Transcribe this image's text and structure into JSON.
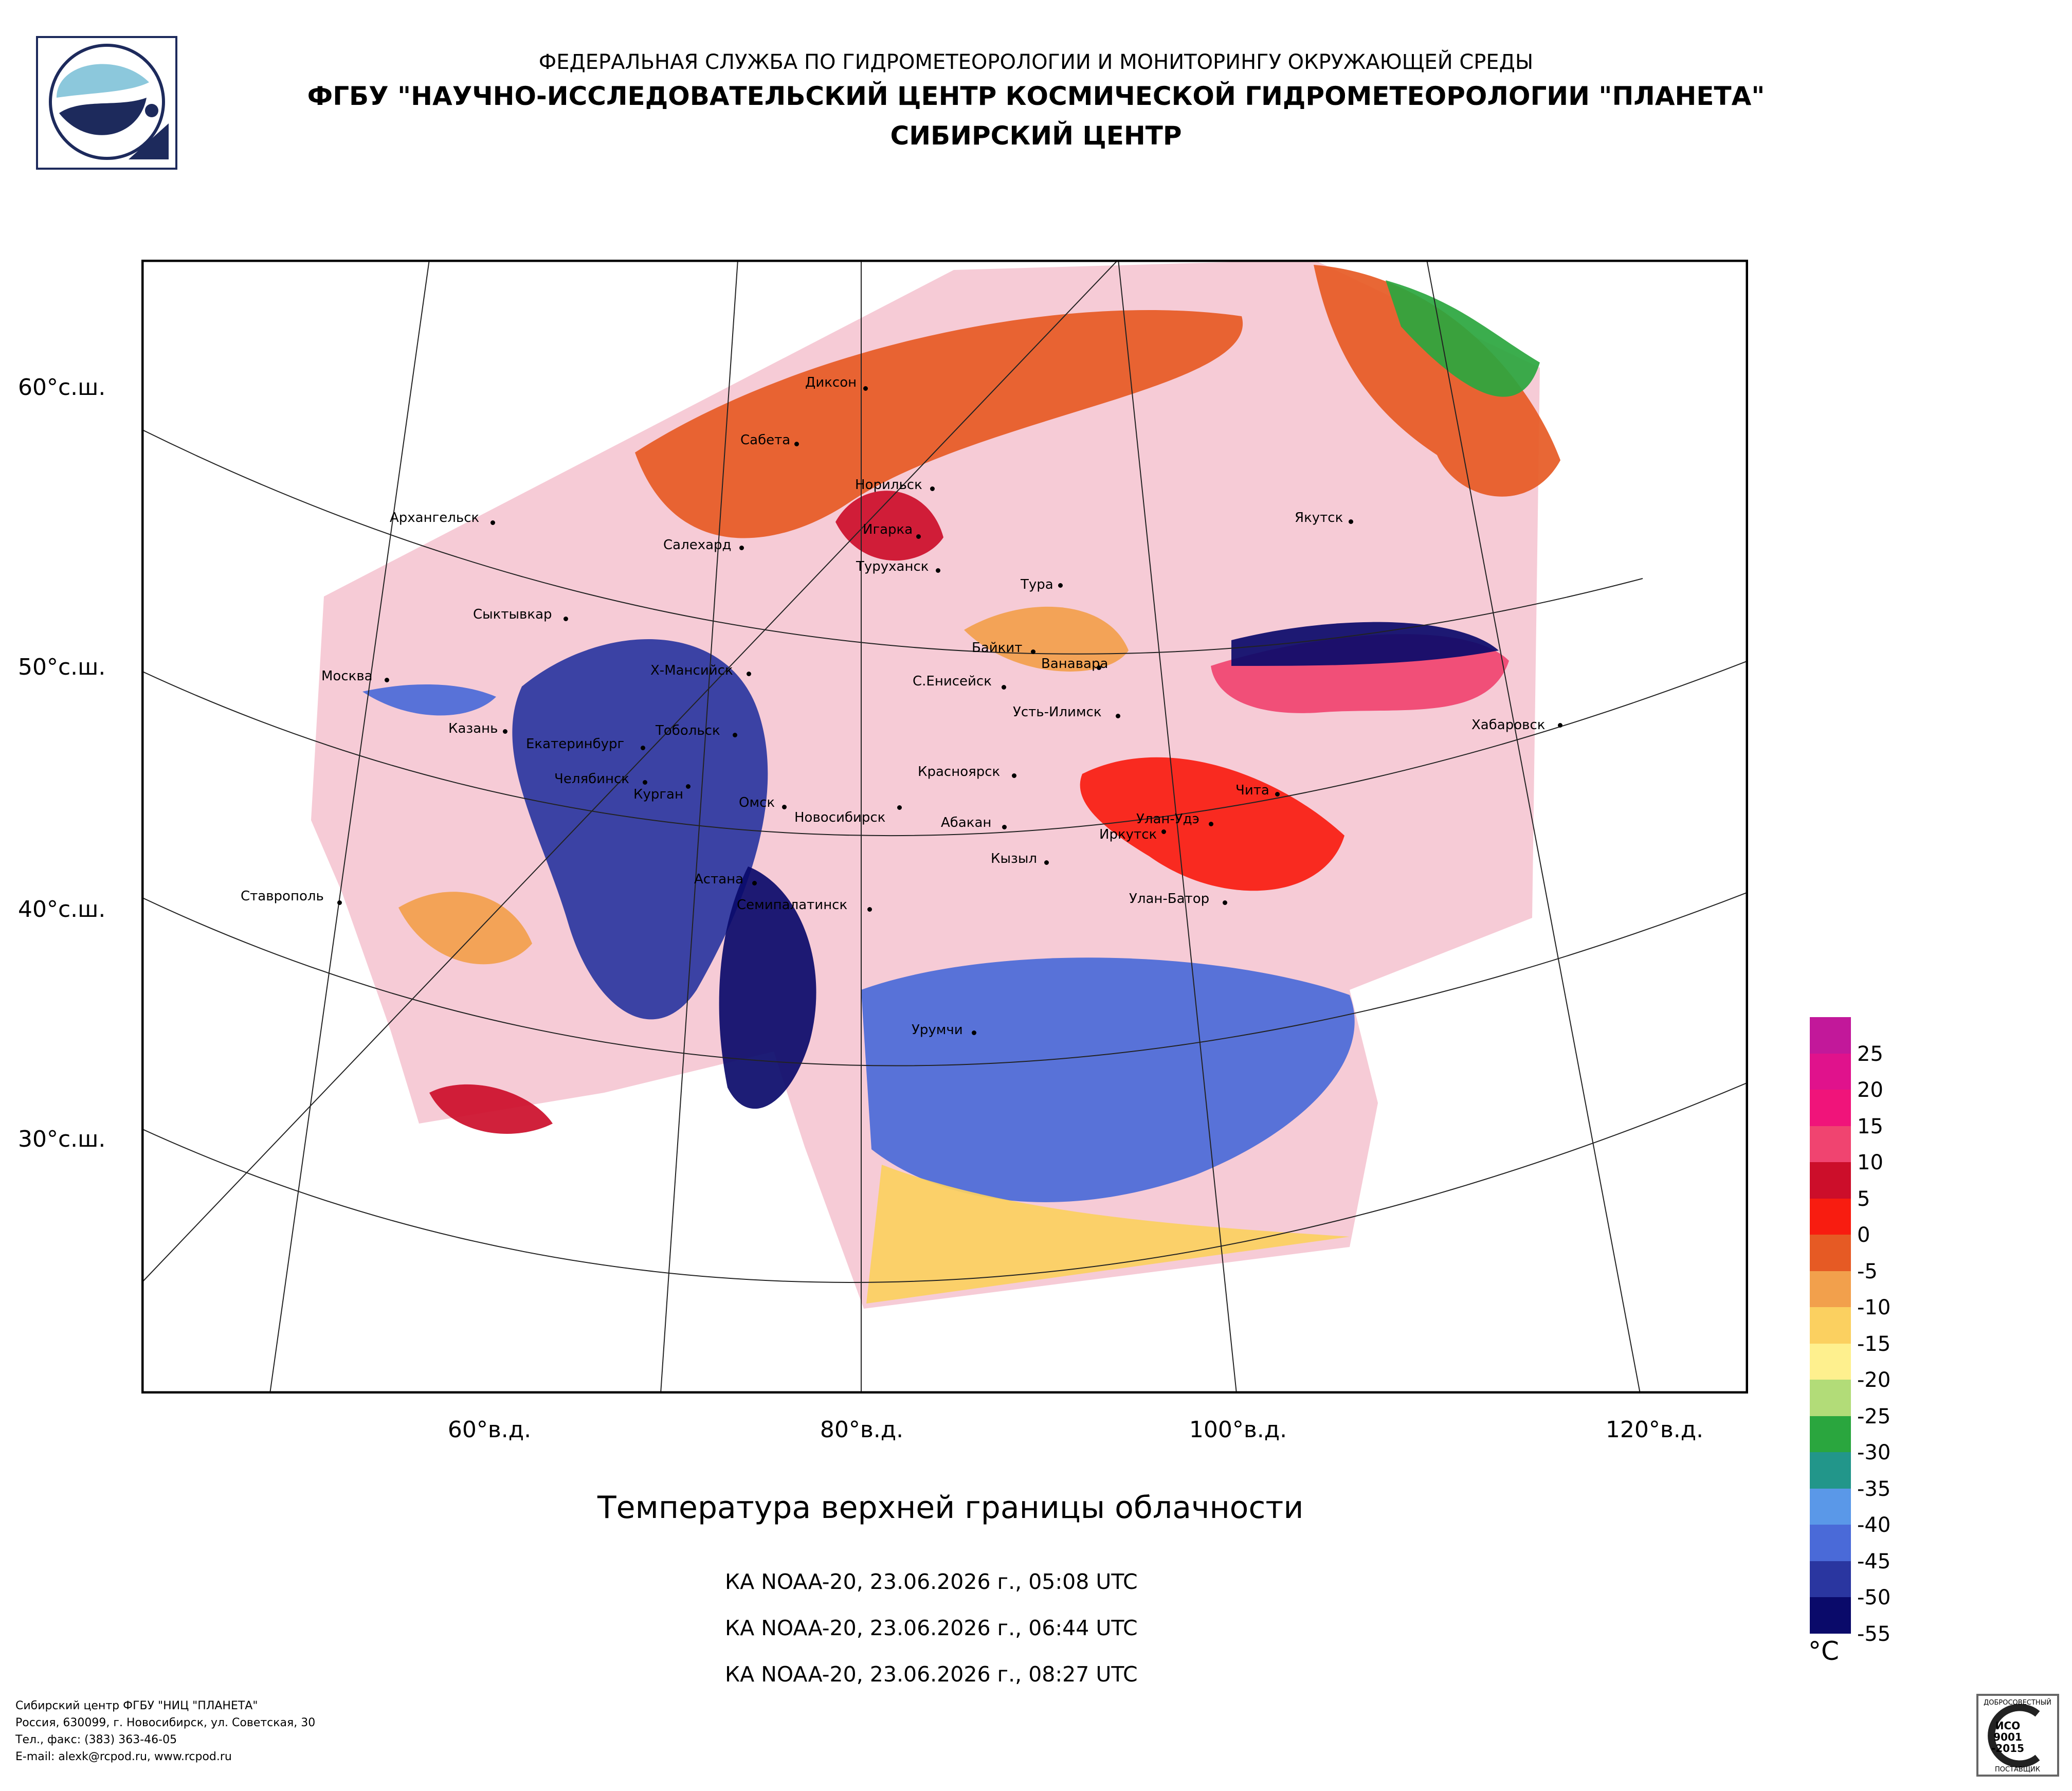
{
  "header": {
    "line1": "ФЕДЕРАЛЬНАЯ СЛУЖБА ПО ГИДРОМЕТЕОРОЛОГИИ И МОНИТОРИНГУ ОКРУЖАЮЩЕЙ СРЕДЫ",
    "line2": "ФГБУ \"НАУЧНО-ИССЛЕДОВАТЕЛЬСКИЙ ЦЕНТР КОСМИЧЕСКОЙ ГИДРОМЕТЕОРОЛОГИИ \"ПЛАНЕТА\"",
    "line3": "СИБИРСКИЙ ЦЕНТР"
  },
  "lat_labels": [
    "60°с.ш.",
    "50°с.ш.",
    "40°с.ш.",
    "30°с.ш."
  ],
  "lon_labels": [
    "60°в.д.",
    "80°в.д.",
    "100°в.д.",
    "120°в.д."
  ],
  "cities": [
    "Диксон",
    "Сабета",
    "Норильск",
    "Архангельск",
    "Игарка",
    "Салехард",
    "Туруханск",
    "Тура",
    "Якутск",
    "Сыктывкар",
    "Байкит",
    "Ванавара",
    "Москва",
    "Х-Мансийск",
    "С.Енисейск",
    "Усть-Илимск",
    "Хабаровск",
    "Казань",
    "Тобольск",
    "Екатеринбург",
    "Челябинск",
    "Курган",
    "Красноярск",
    "Омск",
    "Новосибирск",
    "Абакан",
    "Чита",
    "Улан-Удэ",
    "Иркутск",
    "Кызыл",
    "Астана",
    "Ставрополь",
    "Семипалатинск",
    "Улан-Батор",
    "Урумчи"
  ],
  "product": {
    "title": "Температура верхней границы облачности",
    "passes": [
      "КА NOAA-20, 23.06.2026 г., 05:08 UTC",
      "КА NOAA-20, 23.06.2026 г., 06:44 UTC",
      "КА NOAA-20, 23.06.2026 г., 08:27 UTC"
    ]
  },
  "legend": {
    "unit": "°C",
    "ticks": [
      "25",
      "20",
      "15",
      "10",
      "5",
      "0",
      "-5",
      "-10",
      "-15",
      "-20",
      "-25",
      "-30",
      "-35",
      "-40",
      "-45",
      "-50",
      "-55"
    ],
    "colors": [
      "#c2189a",
      "#e0128c",
      "#f0147a",
      "#f04470",
      "#cc0e2a",
      "#f81c10",
      "#e65a24",
      "#f2a04c",
      "#fbd060",
      "#fef08e",
      "#b2dc78",
      "#2aa63e",
      "#22968a",
      "#5a98e8",
      "#4a6ad8",
      "#2a36a0",
      "#0a0a6a"
    ]
  },
  "footer": {
    "line1": "Сибирский центр ФГБУ \"НИЦ \"ПЛАНЕТА\"",
    "line2": "Россия, 630099, г. Новосибирск, ул. Советская, 30",
    "line3": "Тел., факс: (383) 363-46-05",
    "line4": "E-mail: alexk@rcpod.ru, www.rcpod.ru"
  },
  "certificate": {
    "top": "ДОБРОСОВЕСТНЫЙ",
    "line1": "ИСО",
    "line2": "9001",
    "line3": "-2015",
    "bottom": "ПОСТАВЩИК"
  }
}
